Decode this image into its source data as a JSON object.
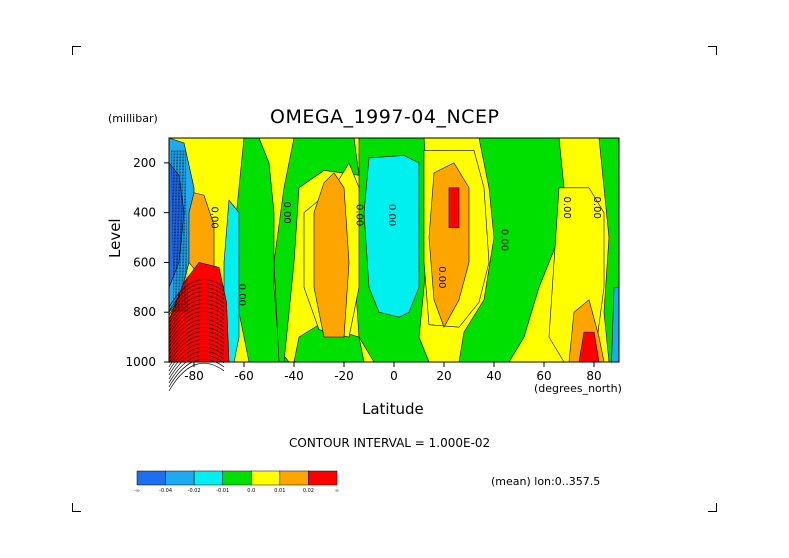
{
  "chart_data": {
    "type": "heatmap",
    "title": "OMEGA_1997-04_NCEP",
    "xlabel": "Latitude",
    "x_units": "(degrees_north)",
    "ylabel": "Level",
    "y_units": "(millibar)",
    "xlim": [
      -90,
      90
    ],
    "ylim": [
      1000,
      100
    ],
    "x_ticks": [
      -80,
      -60,
      -40,
      -20,
      0,
      20,
      40,
      60,
      80
    ],
    "x_tick_labels": [
      "-80",
      "-60",
      "-40",
      "-20",
      "0",
      "20",
      "40",
      "60",
      "80"
    ],
    "y_ticks": [
      200,
      400,
      600,
      800,
      1000
    ],
    "y_tick_labels": [
      "200",
      "400",
      "600",
      "800",
      "1000"
    ],
    "contour_interval_text": "CONTOUR INTERVAL = 1.000E-02",
    "mean_text": "(mean) lon:0..357.5",
    "contour_labels": [
      "0.00",
      "0.00",
      "0.00",
      "0.00",
      "0.00",
      "0.00",
      "0.00",
      "0.00",
      "0.00"
    ],
    "colorbar": {
      "labels": [
        "-∞",
        "-0.04",
        "-0.02",
        "-0.01",
        "0.0",
        "0.01",
        "0.02",
        "∞"
      ],
      "colors": [
        "#1e6ef0",
        "#1eaaf0",
        "#00f0f0",
        "#00e000",
        "#ffff00",
        "#ffa500",
        "#ff0000"
      ]
    },
    "field_regions": [
      {
        "name": "polar-descending-core",
        "lat": [
          -90,
          -70
        ],
        "level": [
          1000,
          600
        ],
        "value_class": "> 0.02"
      },
      {
        "name": "antarctic-ascent",
        "lat": [
          -90,
          -82
        ],
        "level": [
          900,
          100
        ],
        "value_class": "< -0.04"
      },
      {
        "name": "subtropical-south-descent",
        "lat": [
          -34,
          -16
        ],
        "level": [
          900,
          300
        ],
        "value_class": "0.01 to 0.02"
      },
      {
        "name": "equatorial-ascent",
        "lat": [
          -10,
          10
        ],
        "level": [
          900,
          200
        ],
        "value_class": "-0.02 to -0.01"
      },
      {
        "name": "subtropical-north-descent",
        "lat": [
          12,
          32
        ],
        "level": [
          850,
          200
        ],
        "value_class": "0.01 to 0.02"
      },
      {
        "name": "subtropical-north-max",
        "lat": [
          22,
          26
        ],
        "level": [
          500,
          300
        ],
        "value_class": "> 0.02"
      },
      {
        "name": "arctic-descent",
        "lat": [
          70,
          82
        ],
        "level": [
          1000,
          700
        ],
        "value_class": "0.01 to > 0.02"
      }
    ]
  }
}
